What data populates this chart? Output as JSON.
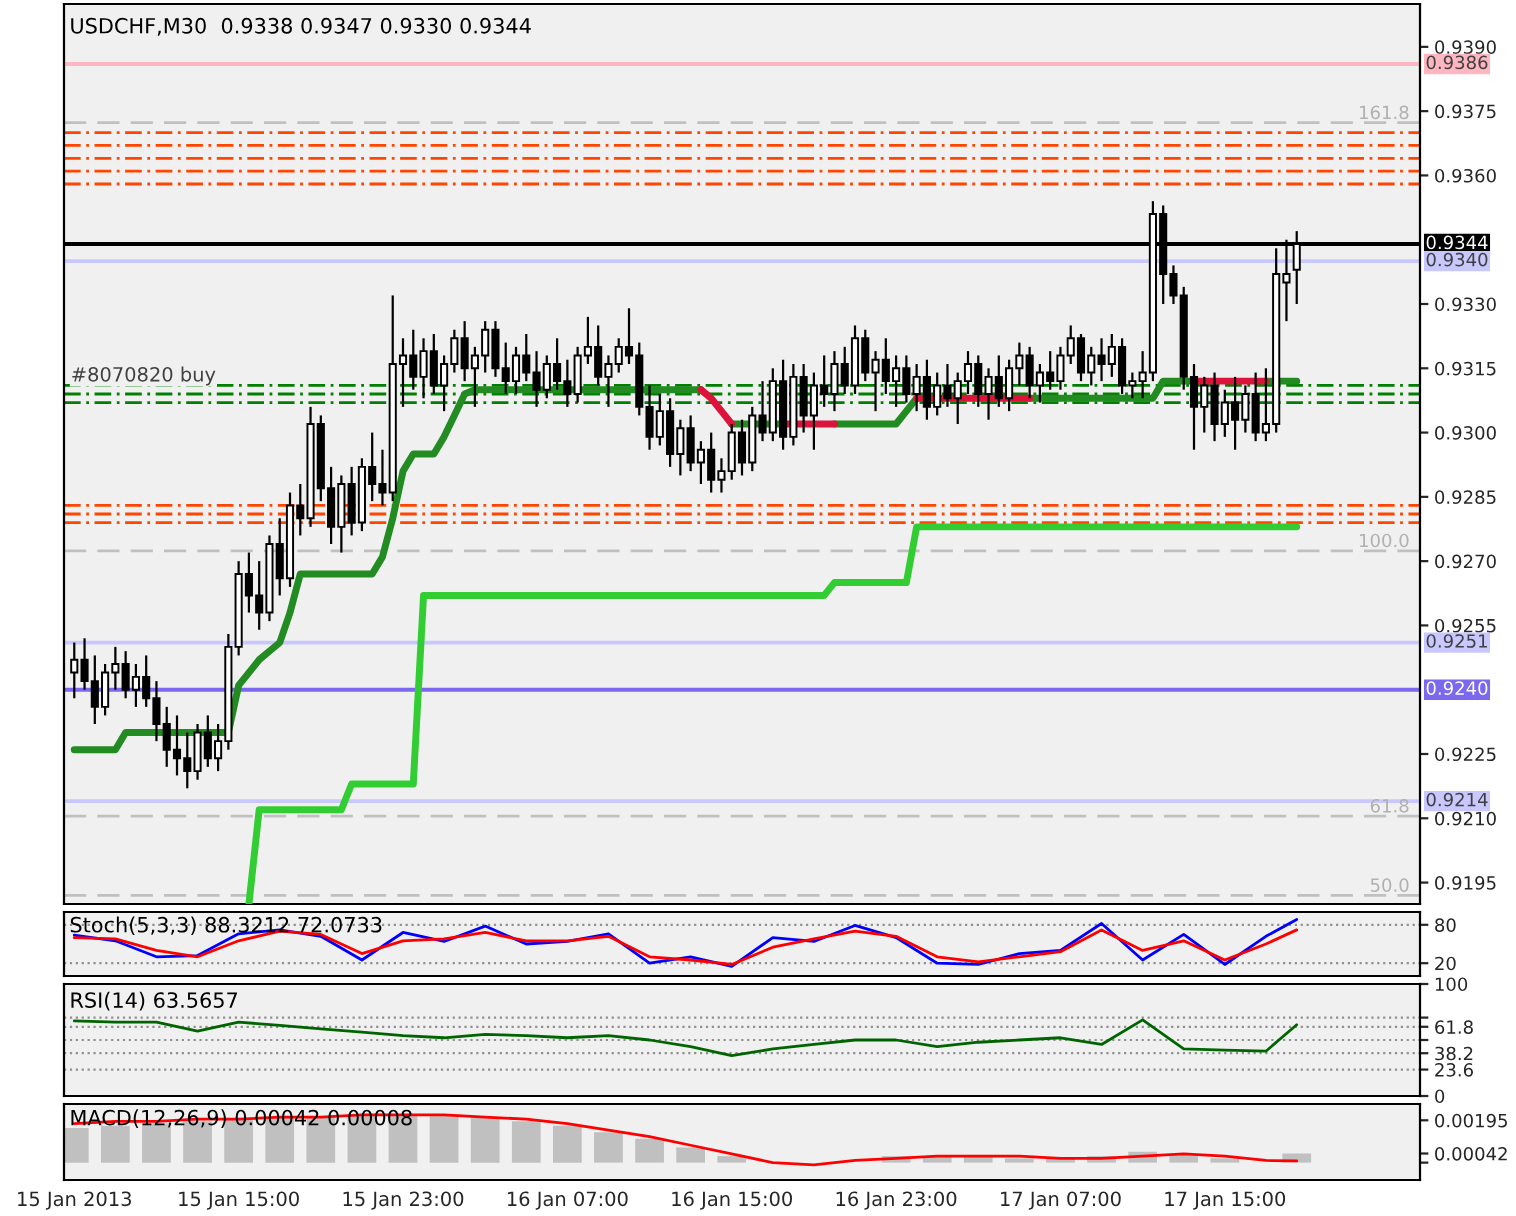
{
  "chart_data": [
    {
      "type": "candlestick",
      "title": "USDCHF,M30  0.9338 0.9347 0.9330 0.9344",
      "tick_labels": "y",
      "x": [
        "2013-01-15T07:00",
        "2013-01-15T07:30",
        "2013-01-15T08:00",
        "2013-01-15T08:30",
        "2013-01-15T09:00",
        "2013-01-15T09:30",
        "2013-01-15T10:00",
        "2013-01-15T10:30",
        "2013-01-15T11:00",
        "2013-01-15T11:30",
        "2013-01-15T12:00",
        "2013-01-15T12:30",
        "2013-01-15T13:00",
        "2013-01-15T13:30",
        "2013-01-15T14:00",
        "2013-01-15T14:30",
        "2013-01-15T15:00",
        "2013-01-15T15:30",
        "2013-01-15T16:00",
        "2013-01-15T16:30",
        "2013-01-15T17:00",
        "2013-01-15T17:30",
        "2013-01-15T18:00",
        "2013-01-15T18:30",
        "2013-01-15T19:00",
        "2013-01-15T19:30",
        "2013-01-15T20:00",
        "2013-01-15T20:30",
        "2013-01-15T21:00",
        "2013-01-15T21:30",
        "2013-01-15T22:00",
        "2013-01-15T22:30",
        "2013-01-15T23:00",
        "2013-01-15T23:30",
        "2013-01-16T00:00",
        "2013-01-16T00:30",
        "2013-01-16T01:00",
        "2013-01-16T01:30",
        "2013-01-16T02:00",
        "2013-01-16T02:30",
        "2013-01-16T03:00",
        "2013-01-16T03:30",
        "2013-01-16T04:00",
        "2013-01-16T04:30",
        "2013-01-16T05:00",
        "2013-01-16T05:30",
        "2013-01-16T06:00",
        "2013-01-16T06:30",
        "2013-01-16T07:00",
        "2013-01-16T07:30",
        "2013-01-16T08:00",
        "2013-01-16T08:30",
        "2013-01-16T09:00",
        "2013-01-16T09:30",
        "2013-01-16T10:00",
        "2013-01-16T10:30",
        "2013-01-16T11:00",
        "2013-01-16T11:30",
        "2013-01-16T12:00",
        "2013-01-16T12:30",
        "2013-01-16T13:00",
        "2013-01-16T13:30",
        "2013-01-16T14:00",
        "2013-01-16T14:30",
        "2013-01-16T15:00",
        "2013-01-16T15:30",
        "2013-01-16T16:00",
        "2013-01-16T16:30",
        "2013-01-16T17:00",
        "2013-01-16T17:30",
        "2013-01-16T18:00",
        "2013-01-16T18:30",
        "2013-01-16T19:00",
        "2013-01-16T19:30",
        "2013-01-16T20:00",
        "2013-01-16T20:30",
        "2013-01-16T21:00",
        "2013-01-16T21:30",
        "2013-01-16T22:00",
        "2013-01-16T22:30",
        "2013-01-16T23:00",
        "2013-01-16T23:30",
        "2013-01-17T00:00",
        "2013-01-17T00:30",
        "2013-01-17T01:00",
        "2013-01-17T01:30",
        "2013-01-17T02:00",
        "2013-01-17T02:30",
        "2013-01-17T03:00",
        "2013-01-17T03:30",
        "2013-01-17T04:00",
        "2013-01-17T04:30",
        "2013-01-17T05:00",
        "2013-01-17T05:30",
        "2013-01-17T06:00",
        "2013-01-17T06:30",
        "2013-01-17T07:00",
        "2013-01-17T07:30",
        "2013-01-17T08:00",
        "2013-01-17T08:30",
        "2013-01-17T09:00",
        "2013-01-17T09:30",
        "2013-01-17T10:00",
        "2013-01-17T10:30",
        "2013-01-17T11:00",
        "2013-01-17T11:30",
        "2013-01-17T12:00",
        "2013-01-17T12:30",
        "2013-01-17T13:00",
        "2013-01-17T13:30",
        "2013-01-17T14:00",
        "2013-01-17T14:30",
        "2013-01-17T15:00",
        "2013-01-17T15:30",
        "2013-01-17T16:00",
        "2013-01-17T16:30",
        "2013-01-17T17:00",
        "2013-01-17T17:30",
        "2013-01-17T18:00",
        "2013-01-17T18:30"
      ],
      "ohlc": [
        [
          0.9244,
          0.9251,
          0.9238,
          0.9247
        ],
        [
          0.9247,
          0.9252,
          0.924,
          0.9242
        ],
        [
          0.9242,
          0.9248,
          0.9232,
          0.9236
        ],
        [
          0.9236,
          0.9246,
          0.9234,
          0.9244
        ],
        [
          0.9244,
          0.925,
          0.924,
          0.9246
        ],
        [
          0.9246,
          0.9249,
          0.9238,
          0.924
        ],
        [
          0.924,
          0.9246,
          0.9236,
          0.9243
        ],
        [
          0.9243,
          0.9248,
          0.9236,
          0.9238
        ],
        [
          0.9238,
          0.9242,
          0.9228,
          0.9232
        ],
        [
          0.9232,
          0.9236,
          0.9222,
          0.9226
        ],
        [
          0.9226,
          0.9234,
          0.922,
          0.9224
        ],
        [
          0.9224,
          0.923,
          0.9217,
          0.9221
        ],
        [
          0.9221,
          0.9232,
          0.9219,
          0.923
        ],
        [
          0.923,
          0.9234,
          0.9222,
          0.9224
        ],
        [
          0.9224,
          0.9232,
          0.9221,
          0.9228
        ],
        [
          0.9228,
          0.9253,
          0.9226,
          0.925
        ],
        [
          0.925,
          0.927,
          0.9248,
          0.9267
        ],
        [
          0.9267,
          0.9272,
          0.9258,
          0.9262
        ],
        [
          0.9262,
          0.927,
          0.9254,
          0.9258
        ],
        [
          0.9258,
          0.9276,
          0.9256,
          0.9274
        ],
        [
          0.9274,
          0.928,
          0.9262,
          0.9266
        ],
        [
          0.9266,
          0.9286,
          0.9264,
          0.9283
        ],
        [
          0.9283,
          0.9288,
          0.9276,
          0.928
        ],
        [
          0.928,
          0.9306,
          0.9278,
          0.9302
        ],
        [
          0.9302,
          0.9304,
          0.9284,
          0.9287
        ],
        [
          0.9287,
          0.9292,
          0.9274,
          0.9278
        ],
        [
          0.9278,
          0.929,
          0.9272,
          0.9288
        ],
        [
          0.9288,
          0.9292,
          0.9276,
          0.9279
        ],
        [
          0.9279,
          0.9294,
          0.9277,
          0.9292
        ],
        [
          0.9292,
          0.93,
          0.9284,
          0.9288
        ],
        [
          0.9288,
          0.9296,
          0.9283,
          0.9286
        ],
        [
          0.9286,
          0.9332,
          0.9284,
          0.9316
        ],
        [
          0.9316,
          0.9322,
          0.9306,
          0.9318
        ],
        [
          0.9318,
          0.9324,
          0.931,
          0.9313
        ],
        [
          0.9313,
          0.9322,
          0.9308,
          0.9319
        ],
        [
          0.9319,
          0.9323,
          0.9309,
          0.9311
        ],
        [
          0.9311,
          0.9318,
          0.9305,
          0.9316
        ],
        [
          0.9316,
          0.9324,
          0.9314,
          0.9322
        ],
        [
          0.9322,
          0.9326,
          0.9312,
          0.9315
        ],
        [
          0.9315,
          0.932,
          0.9306,
          0.9318
        ],
        [
          0.9318,
          0.9326,
          0.9314,
          0.9324
        ],
        [
          0.9324,
          0.9326,
          0.9313,
          0.9315
        ],
        [
          0.9315,
          0.9321,
          0.9309,
          0.9312
        ],
        [
          0.9312,
          0.932,
          0.9309,
          0.9318
        ],
        [
          0.9318,
          0.9323,
          0.9312,
          0.9314
        ],
        [
          0.9314,
          0.9319,
          0.9306,
          0.931
        ],
        [
          0.931,
          0.9318,
          0.9308,
          0.9316
        ],
        [
          0.9316,
          0.9322,
          0.931,
          0.9312
        ],
        [
          0.9312,
          0.9317,
          0.9306,
          0.9309
        ],
        [
          0.9309,
          0.932,
          0.9307,
          0.9318
        ],
        [
          0.9318,
          0.9327,
          0.9316,
          0.932
        ],
        [
          0.932,
          0.9325,
          0.9311,
          0.9313
        ],
        [
          0.9313,
          0.9318,
          0.9306,
          0.9316
        ],
        [
          0.9316,
          0.9322,
          0.9314,
          0.932
        ],
        [
          0.932,
          0.9329,
          0.9316,
          0.9318
        ],
        [
          0.9318,
          0.9321,
          0.9304,
          0.9306
        ],
        [
          0.9306,
          0.9311,
          0.9296,
          0.9299
        ],
        [
          0.9299,
          0.9309,
          0.9297,
          0.9305
        ],
        [
          0.9305,
          0.9308,
          0.9292,
          0.9295
        ],
        [
          0.9295,
          0.9303,
          0.929,
          0.9301
        ],
        [
          0.9301,
          0.9304,
          0.9291,
          0.9293
        ],
        [
          0.9293,
          0.9298,
          0.9288,
          0.9296
        ],
        [
          0.9296,
          0.93,
          0.9286,
          0.9289
        ],
        [
          0.9289,
          0.9294,
          0.9286,
          0.9291
        ],
        [
          0.9291,
          0.9302,
          0.9289,
          0.93
        ],
        [
          0.93,
          0.9303,
          0.929,
          0.9293
        ],
        [
          0.9293,
          0.9306,
          0.9291,
          0.9304
        ],
        [
          0.9304,
          0.9312,
          0.9298,
          0.93
        ],
        [
          0.93,
          0.9315,
          0.9298,
          0.9312
        ],
        [
          0.9312,
          0.9317,
          0.9296,
          0.9299
        ],
        [
          0.9299,
          0.9316,
          0.9297,
          0.9313
        ],
        [
          0.9313,
          0.9316,
          0.93,
          0.9304
        ],
        [
          0.9304,
          0.9314,
          0.9296,
          0.9311
        ],
        [
          0.9311,
          0.9318,
          0.9306,
          0.9309
        ],
        [
          0.9309,
          0.9319,
          0.9305,
          0.9316
        ],
        [
          0.9316,
          0.932,
          0.9309,
          0.9311
        ],
        [
          0.9311,
          0.9325,
          0.9309,
          0.9322
        ],
        [
          0.9322,
          0.9324,
          0.9312,
          0.9314
        ],
        [
          0.9314,
          0.9319,
          0.9305,
          0.9317
        ],
        [
          0.9317,
          0.9322,
          0.9309,
          0.9312
        ],
        [
          0.9312,
          0.9318,
          0.9306,
          0.9315
        ],
        [
          0.9315,
          0.9318,
          0.9307,
          0.9309
        ],
        [
          0.9309,
          0.9316,
          0.9305,
          0.9313
        ],
        [
          0.9313,
          0.9317,
          0.9303,
          0.9306
        ],
        [
          0.9306,
          0.9314,
          0.9304,
          0.9311
        ],
        [
          0.9311,
          0.9316,
          0.9306,
          0.9308
        ],
        [
          0.9308,
          0.9314,
          0.9302,
          0.9312
        ],
        [
          0.9312,
          0.9319,
          0.9309,
          0.9316
        ],
        [
          0.9316,
          0.9318,
          0.9306,
          0.9309
        ],
        [
          0.9309,
          0.9315,
          0.9303,
          0.9313
        ],
        [
          0.9313,
          0.9318,
          0.9306,
          0.9308
        ],
        [
          0.9308,
          0.9317,
          0.9305,
          0.9315
        ],
        [
          0.9315,
          0.9321,
          0.9311,
          0.9318
        ],
        [
          0.9318,
          0.932,
          0.9308,
          0.9311
        ],
        [
          0.9311,
          0.9316,
          0.9307,
          0.9314
        ],
        [
          0.9314,
          0.9319,
          0.931,
          0.9312
        ],
        [
          0.9312,
          0.932,
          0.931,
          0.9318
        ],
        [
          0.9318,
          0.9325,
          0.9316,
          0.9322
        ],
        [
          0.9322,
          0.9323,
          0.9312,
          0.9314
        ],
        [
          0.9314,
          0.932,
          0.9311,
          0.9318
        ],
        [
          0.9318,
          0.9322,
          0.9312,
          0.9316
        ],
        [
          0.9316,
          0.9323,
          0.9313,
          0.932
        ],
        [
          0.932,
          0.9322,
          0.9309,
          0.9311
        ],
        [
          0.9311,
          0.9314,
          0.9308,
          0.9312
        ],
        [
          0.9312,
          0.9319,
          0.9308,
          0.9314
        ],
        [
          0.9314,
          0.9354,
          0.9312,
          0.9351
        ],
        [
          0.9351,
          0.9353,
          0.933,
          0.9337
        ],
        [
          0.9337,
          0.9339,
          0.933,
          0.9332
        ],
        [
          0.9332,
          0.9334,
          0.931,
          0.9313
        ],
        [
          0.9313,
          0.9316,
          0.9296,
          0.9306
        ],
        [
          0.9306,
          0.9313,
          0.93,
          0.9311
        ],
        [
          0.9311,
          0.9314,
          0.9298,
          0.9302
        ],
        [
          0.9302,
          0.931,
          0.9299,
          0.9307
        ],
        [
          0.9307,
          0.9313,
          0.9296,
          0.9303
        ],
        [
          0.9303,
          0.9311,
          0.93,
          0.9309
        ],
        [
          0.9309,
          0.9314,
          0.9298,
          0.93
        ],
        [
          0.93,
          0.9315,
          0.9298,
          0.9302
        ],
        [
          0.9302,
          0.9343,
          0.93,
          0.9337
        ],
        [
          0.9335,
          0.9345,
          0.9326,
          0.9337
        ],
        [
          0.9338,
          0.9347,
          0.933,
          0.9344
        ]
      ],
      "series": [
        {
          "type": "line",
          "color": "#228b22",
          "values": [
            0.9226,
            0.9226,
            0.9226,
            0.9226,
            0.9226,
            0.923,
            0.923,
            0.923,
            0.923,
            0.923,
            0.923,
            0.923,
            0.923,
            0.923,
            0.923,
            0.923,
            0.9241,
            0.9244,
            0.9247,
            0.9249,
            0.9251,
            0.9258,
            0.9267,
            0.9267,
            0.9267,
            0.9267,
            0.9267,
            0.9267,
            0.9267,
            0.9267,
            0.9271,
            0.928,
            0.9291,
            0.9295,
            0.9295,
            0.9295,
            0.9299,
            0.9304,
            0.9309,
            0.931,
            0.931,
            0.931,
            0.931,
            0.931,
            0.931,
            0.931,
            0.931,
            0.931,
            0.931,
            0.931,
            0.931,
            0.931,
            0.931,
            0.931,
            0.931,
            0.931,
            0.931,
            0.931,
            0.931,
            0.931,
            0.931,
            0.931,
            null,
            null,
            0.9302,
            0.9302,
            0.9302,
            0.9302,
            0.9302,
            0.9302,
            null,
            null,
            null,
            null,
            0.9302,
            0.9302,
            0.9302,
            0.9302,
            0.9302,
            0.9302,
            0.9302,
            0.9305,
            0.9308,
            null,
            null,
            null,
            null,
            null,
            null,
            null,
            null,
            null,
            null,
            0.9308,
            0.9308,
            0.9308,
            0.9308,
            0.9308,
            0.9308,
            0.9308,
            0.9308,
            0.9308,
            0.9308,
            0.9308,
            0.9308,
            0.9308,
            0.9312,
            0.9312,
            0.9312,
            0.9312,
            null,
            null,
            null,
            null,
            null,
            null,
            0.9312,
            0.9312,
            0.9312,
            0.9312
          ]
        },
        {
          "type": "line",
          "color": "#dc143c",
          "values": [
            null,
            null,
            null,
            null,
            null,
            null,
            null,
            null,
            null,
            null,
            null,
            null,
            null,
            null,
            null,
            null,
            null,
            null,
            null,
            null,
            null,
            null,
            null,
            null,
            null,
            null,
            null,
            null,
            null,
            null,
            null,
            null,
            null,
            null,
            null,
            null,
            null,
            null,
            null,
            null,
            null,
            null,
            null,
            null,
            null,
            null,
            null,
            null,
            null,
            null,
            null,
            null,
            null,
            null,
            null,
            null,
            null,
            null,
            null,
            null,
            null,
            0.931,
            0.9308,
            0.9305,
            0.9302,
            null,
            null,
            null,
            null,
            0.9302,
            0.9302,
            0.9302,
            0.9302,
            0.9302,
            0.9302,
            null,
            null,
            null,
            null,
            null,
            null,
            null,
            0.9308,
            0.9308,
            0.9308,
            0.9308,
            0.9308,
            0.9308,
            0.9308,
            0.9308,
            0.9308,
            0.9308,
            0.9308,
            0.9308,
            null,
            null,
            null,
            null,
            null,
            null,
            null,
            null,
            null,
            null,
            null,
            null,
            null,
            null,
            null,
            0.9312,
            0.9312,
            0.9312,
            0.9312,
            0.9312,
            0.9312,
            0.9312,
            0.9312,
            null,
            null,
            null
          ]
        },
        {
          "type": "line",
          "color": "#32cd32",
          "values": [
            null,
            null,
            null,
            null,
            null,
            null,
            null,
            null,
            null,
            null,
            null,
            null,
            null,
            null,
            null,
            null,
            null,
            0.919,
            0.9212,
            0.9212,
            0.9212,
            0.9212,
            0.9212,
            0.9212,
            0.9212,
            0.9212,
            0.9212,
            0.9218,
            0.9218,
            0.9218,
            0.9218,
            0.9218,
            0.9218,
            0.9218,
            0.9262,
            0.9262,
            0.9262,
            0.9262,
            0.9262,
            0.9262,
            0.9262,
            0.9262,
            0.9262,
            0.9262,
            0.9262,
            0.9262,
            0.9262,
            0.9262,
            0.9262,
            0.9262,
            0.9262,
            0.9262,
            0.9262,
            0.9262,
            0.9262,
            0.9262,
            0.9262,
            0.9262,
            0.9262,
            0.9262,
            0.9262,
            0.9262,
            0.9262,
            0.9262,
            0.9262,
            0.9262,
            0.9262,
            0.9262,
            0.9262,
            0.9262,
            0.9262,
            0.9262,
            0.9262,
            0.9262,
            0.9265,
            0.9265,
            0.9265,
            0.9265,
            0.9265,
            0.9265,
            0.9265,
            0.9265,
            0.9278,
            0.9278,
            0.9278,
            0.9278,
            0.9278,
            0.9278,
            0.9278,
            0.9278,
            0.9278,
            0.9278,
            0.9278,
            0.9278,
            0.9278,
            0.9278,
            0.9278,
            0.9278,
            0.9278,
            0.9278,
            0.9278,
            0.9278,
            0.9278,
            0.9278,
            0.9278,
            0.9278,
            0.9278,
            0.9278,
            0.9278,
            0.9278,
            0.9278,
            0.9278,
            0.9278,
            0.9278,
            0.9278,
            0.9278,
            0.9278,
            0.9278,
            0.9278,
            0.9278
          ]
        }
      ],
      "ref_lines": [
        {
          "axis": "y",
          "value": 0.9386,
          "label": "0.9386",
          "color": "#ffb6c1",
          "line_style": "solid"
        },
        {
          "axis": "y",
          "value": 0.9344,
          "label": "0.9344",
          "color": "#000000",
          "line_style": "solid"
        },
        {
          "axis": "y",
          "value": 0.934,
          "label": "0.9340",
          "color": "#c8c8ff",
          "line_style": "solid"
        },
        {
          "axis": "y",
          "value": 0.9251,
          "label": "0.9251",
          "color": "#c8c8ff",
          "line_style": "solid"
        },
        {
          "axis": "y",
          "value": 0.924,
          "label": "0.9240",
          "color": "#7b68ee",
          "line_style": "solid"
        },
        {
          "axis": "y",
          "value": 0.9214,
          "label": "0.9214",
          "color": "#c8c8ff",
          "line_style": "solid"
        },
        {
          "axis": "y",
          "value": 0.93723,
          "color": "#c0c0c0",
          "line_style": "dashed"
        },
        {
          "axis": "y",
          "value": 0.92724,
          "color": "#c0c0c0",
          "line_style": "dashed"
        },
        {
          "axis": "y",
          "value": 0.92105,
          "color": "#c0c0c0",
          "line_style": "dashed"
        },
        {
          "axis": "y",
          "value": 0.9192,
          "color": "#c0c0c0",
          "line_style": "dashed"
        },
        {
          "axis": "y",
          "value": 0.937,
          "color": "#ff4500",
          "line_style": "dotted"
        },
        {
          "axis": "y",
          "value": 0.9367,
          "color": "#ff4500",
          "line_style": "dotted"
        },
        {
          "axis": "y",
          "value": 0.9364,
          "color": "#ff4500",
          "line_style": "dotted"
        },
        {
          "axis": "y",
          "value": 0.9361,
          "color": "#ff4500",
          "line_style": "dotted"
        },
        {
          "axis": "y",
          "value": 0.9358,
          "color": "#ff4500",
          "line_style": "dotted"
        },
        {
          "axis": "y",
          "value": 0.9283,
          "color": "#ff4500",
          "line_style": "dotted"
        },
        {
          "axis": "y",
          "value": 0.9281,
          "color": "#ff4500",
          "line_style": "dotted"
        },
        {
          "axis": "y",
          "value": 0.9279,
          "color": "#ff4500",
          "line_style": "dotted"
        },
        {
          "axis": "y",
          "value": 0.9311,
          "label": "#8070820 buy",
          "color": "#008000",
          "line_style": "dotted"
        },
        {
          "axis": "y",
          "value": 0.9309,
          "color": "#008000",
          "line_style": "dotted"
        },
        {
          "axis": "y",
          "value": 0.9307,
          "color": "#008000",
          "line_style": "dotted"
        }
      ],
      "annotations": [
        {
          "text": "161.8",
          "x": "2013-01-18T00:00",
          "y": 0.93723
        },
        {
          "text": "100.0",
          "x": "2013-01-18T00:00",
          "y": 0.92724
        },
        {
          "text": "61.8",
          "x": "2013-01-18T00:00",
          "y": 0.92105
        },
        {
          "text": "50.0",
          "x": "2013-01-18T00:00",
          "y": 0.9192
        }
      ],
      "xlim": [
        "2013-01-15T06:30",
        "2013-01-18T00:30"
      ],
      "ylim": [
        0.919,
        0.94
      ],
      "yticks": [
        {
          "value": 0.939,
          "label": "0.9390"
        },
        0.9375,
        {
          "value": 0.936,
          "label": "0.9360"
        },
        {
          "value": 0.933,
          "label": "0.9330"
        },
        0.9315,
        {
          "value": 0.93,
          "label": "0.9300"
        },
        0.9285,
        {
          "value": 0.927,
          "label": "0.9270"
        },
        0.9255,
        0.9225,
        {
          "value": 0.921,
          "label": "0.9210"
        },
        0.9195
      ]
    },
    {
      "type": "line",
      "title": "Stoch(5,3,3) 88.3212 72.0733",
      "tick_labels": "y",
      "grid": "y",
      "x": [
        "2013-01-15T07:00",
        "2013-01-15T09:00",
        "2013-01-15T11:00",
        "2013-01-15T13:00",
        "2013-01-15T15:00",
        "2013-01-15T17:00",
        "2013-01-15T19:00",
        "2013-01-15T21:00",
        "2013-01-15T23:00",
        "2013-01-16T01:00",
        "2013-01-16T03:00",
        "2013-01-16T05:00",
        "2013-01-16T07:00",
        "2013-01-16T09:00",
        "2013-01-16T11:00",
        "2013-01-16T13:00",
        "2013-01-16T15:00",
        "2013-01-16T17:00",
        "2013-01-16T19:00",
        "2013-01-16T21:00",
        "2013-01-16T23:00",
        "2013-01-17T01:00",
        "2013-01-17T03:00",
        "2013-01-17T05:00",
        "2013-01-17T07:00",
        "2013-01-17T09:00",
        "2013-01-17T11:00",
        "2013-01-17T13:00",
        "2013-01-17T15:00",
        "2013-01-17T17:00",
        "2013-01-17T18:30"
      ],
      "series": [
        {
          "color": "#0000ff",
          "values": [
            64,
            55,
            30,
            32,
            66,
            72,
            62,
            25,
            68,
            54,
            78,
            50,
            54,
            66,
            20,
            30,
            15,
            60,
            54,
            79,
            60,
            20,
            18,
            35,
            40,
            82,
            25,
            65,
            18,
            62,
            88.3212
          ]
        },
        {
          "color": "#ff0000",
          "values": [
            60,
            58,
            40,
            30,
            55,
            70,
            65,
            35,
            55,
            58,
            68,
            55,
            55,
            62,
            30,
            25,
            18,
            45,
            58,
            70,
            62,
            30,
            22,
            30,
            38,
            72,
            40,
            55,
            25,
            50,
            72.0733
          ]
        }
      ],
      "xlim": [
        "2013-01-15T06:30",
        "2013-01-18T00:30"
      ],
      "ylim": [
        0,
        100
      ],
      "yticks": [
        20,
        80
      ]
    },
    {
      "type": "line",
      "title": "RSI(14) 63.5657",
      "tick_labels": "y",
      "grid": "y",
      "x": [
        "2013-01-15T07:00",
        "2013-01-15T09:00",
        "2013-01-15T11:00",
        "2013-01-15T13:00",
        "2013-01-15T15:00",
        "2013-01-15T17:00",
        "2013-01-15T19:00",
        "2013-01-15T21:00",
        "2013-01-15T23:00",
        "2013-01-16T01:00",
        "2013-01-16T03:00",
        "2013-01-16T05:00",
        "2013-01-16T07:00",
        "2013-01-16T09:00",
        "2013-01-16T11:00",
        "2013-01-16T13:00",
        "2013-01-16T15:00",
        "2013-01-16T17:00",
        "2013-01-16T19:00",
        "2013-01-16T21:00",
        "2013-01-16T23:00",
        "2013-01-17T01:00",
        "2013-01-17T03:00",
        "2013-01-17T05:00",
        "2013-01-17T07:00",
        "2013-01-17T09:00",
        "2013-01-17T11:00",
        "2013-01-17T13:00",
        "2013-01-17T15:00",
        "2013-01-17T17:00",
        "2013-01-17T18:30"
      ],
      "series": [
        {
          "color": "#006400",
          "values": [
            67,
            66,
            66,
            58,
            66,
            63,
            60,
            57,
            54,
            52,
            55,
            54,
            52,
            54,
            50,
            44,
            36,
            42,
            46,
            50,
            50,
            44,
            48,
            50,
            52,
            46,
            68,
            42,
            41,
            40,
            63.5657
          ]
        }
      ],
      "xlim": [
        "2013-01-15T06:30",
        "2013-01-18T00:30"
      ],
      "ylim": [
        0,
        100
      ],
      "yticks": [
        0,
        23.6,
        38.2,
        {
          "value": 50,
          "label": null
        },
        61.8,
        {
          "value": 70,
          "label": null
        },
        100
      ]
    },
    {
      "type": "bar",
      "title": "MACD(12,26,9) 0.00042 0.00008",
      "x": [
        "2013-01-15T07:00",
        "2013-01-15T09:00",
        "2013-01-15T11:00",
        "2013-01-15T13:00",
        "2013-01-15T15:00",
        "2013-01-15T17:00",
        "2013-01-15T19:00",
        "2013-01-15T21:00",
        "2013-01-15T23:00",
        "2013-01-16T01:00",
        "2013-01-16T03:00",
        "2013-01-16T05:00",
        "2013-01-16T07:00",
        "2013-01-16T09:00",
        "2013-01-16T11:00",
        "2013-01-16T13:00",
        "2013-01-16T15:00",
        "2013-01-16T17:00",
        "2013-01-16T19:00",
        "2013-01-16T21:00",
        "2013-01-16T23:00",
        "2013-01-17T01:00",
        "2013-01-17T03:00",
        "2013-01-17T05:00",
        "2013-01-17T07:00",
        "2013-01-17T09:00",
        "2013-01-17T11:00",
        "2013-01-17T13:00",
        "2013-01-17T15:00",
        "2013-01-17T17:00",
        "2013-01-17T18:30"
      ],
      "series": [
        {
          "type": "bar",
          "color": "#c0c0c0",
          "values": [
            0.0016,
            0.0017,
            0.0018,
            0.0019,
            0.002,
            0.0021,
            0.0021,
            0.0022,
            0.0022,
            0.0022,
            0.0021,
            0.0019,
            0.0017,
            0.0014,
            0.0011,
            0.0007,
            0.0003,
            null,
            null,
            null,
            0.0003,
            0.0003,
            0.0003,
            0.0002,
            0.0002,
            0.0003,
            0.0005,
            0.0004,
            0.0002,
            null,
            0.00042
          ]
        },
        {
          "type": "line",
          "color": "#ff0000",
          "values": [
            0.0018,
            0.0019,
            0.0019,
            0.002,
            0.002,
            0.0021,
            0.0021,
            0.0022,
            0.0022,
            0.0022,
            0.0021,
            0.002,
            0.0018,
            0.0015,
            0.0012,
            0.0008,
            0.0004,
            0,
            -0.0001,
            0.0001,
            0.0002,
            0.0003,
            0.0003,
            0.0003,
            0.0002,
            0.0002,
            0.0003,
            0.0004,
            0.0003,
            0.0001,
            8e-05
          ]
        }
      ],
      "xlim": [
        "2013-01-15T06:30",
        "2013-01-18T00:30"
      ],
      "ylim": [
        -0.0008,
        0.0027
      ],
      "yticks": [
        0.00195,
        0.00042,
        {
          "value": 0,
          "label": null
        }
      ],
      "xticks": [
        {
          "value": "2013-01-15T07:00",
          "label": "15 Jan 2013"
        },
        {
          "value": "2013-01-15T15:00",
          "label": "15 Jan 15:00"
        },
        {
          "value": "2013-01-15T23:00",
          "label": "15 Jan 23:00"
        },
        {
          "value": "2013-01-16T07:00",
          "label": "16 Jan 07:00"
        },
        {
          "value": "2013-01-16T15:00",
          "label": "16 Jan 15:00"
        },
        {
          "value": "2013-01-16T23:00",
          "label": "16 Jan 23:00"
        },
        {
          "value": "2013-01-17T07:00",
          "label": "17 Jan 07:00"
        },
        {
          "value": "2013-01-17T15:00",
          "label": "17 Jan 15:00"
        }
      ]
    }
  ]
}
